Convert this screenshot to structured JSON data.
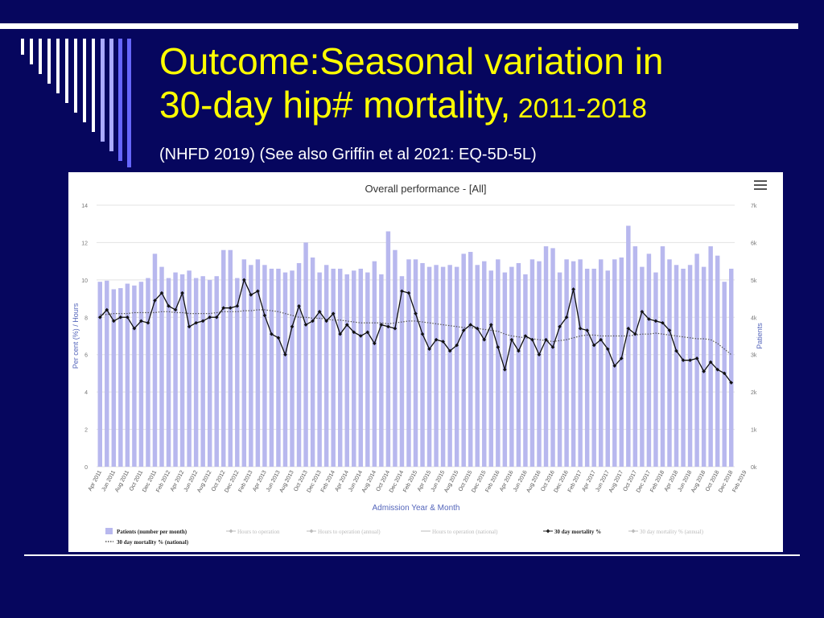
{
  "slide": {
    "title_line1": "Outcome:Seasonal variation in",
    "title_line2_main": "30-day hip# mortality,",
    "title_line2_years": " 2011-2018",
    "subtitle": "(NHFD 2019) (See also Griffin et al 2021: EQ-5D-5L)"
  },
  "colors": {
    "background": "#06065e",
    "title": "#ffff00",
    "bar": "#b8b8ee",
    "line": "#111111",
    "national_dotted": "#555555"
  },
  "chart_data": {
    "type": "bar+line",
    "title": "Overall performance - [All]",
    "xlabel": "Admission Year & Month",
    "ylabel_left": "Per cent (%) / Hours",
    "ylabel_right": "Patients",
    "ylim_left": [
      0,
      14
    ],
    "ylim_right": [
      0,
      7000
    ],
    "yticks_left": [
      "0",
      "2",
      "4",
      "6",
      "8",
      "10",
      "12",
      "14"
    ],
    "yticks_right": [
      "0k",
      "1k",
      "2k",
      "3k",
      "4k",
      "5k",
      "6k",
      "7k"
    ],
    "x_tick_labels": [
      "Apr 2011",
      "Jun 2011",
      "Aug 2011",
      "Oct 2011",
      "Dec 2011",
      "Feb 2012",
      "Apr 2012",
      "Jun 2012",
      "Aug 2012",
      "Oct 2012",
      "Dec 2012",
      "Feb 2013",
      "Apr 2013",
      "Jun 2013",
      "Aug 2013",
      "Oct 2013",
      "Dec 2013",
      "Feb 2014",
      "Apr 2014",
      "Jun 2014",
      "Aug 2014",
      "Oct 2014",
      "Dec 2014",
      "Feb 2015",
      "Apr 2015",
      "Jun 2015",
      "Aug 2015",
      "Oct 2015",
      "Dec 2015",
      "Feb 2016",
      "Apr 2016",
      "Jun 2016",
      "Aug 2016",
      "Oct 2016",
      "Dec 2016",
      "Feb 2017",
      "Apr 2017",
      "Jun 2017",
      "Aug 2017",
      "Oct 2017",
      "Dec 2017",
      "Feb 2018",
      "Apr 2018",
      "Jun 2018",
      "Aug 2018",
      "Oct 2018",
      "Dec 2018",
      "Feb 2019"
    ],
    "start_month": "Apr 2011",
    "series": [
      {
        "name": "Patients (number per month)",
        "axis": "right",
        "kind": "bar",
        "values": [
          4950,
          4980,
          4750,
          4780,
          4900,
          4850,
          4950,
          5050,
          5700,
          5350,
          5050,
          5200,
          5150,
          5250,
          5050,
          5100,
          5000,
          5100,
          5800,
          5800,
          5050,
          5550,
          5400,
          5550,
          5400,
          5300,
          5300,
          5200,
          5250,
          5450,
          6000,
          5600,
          5200,
          5400,
          5300,
          5300,
          5150,
          5250,
          5300,
          5200,
          5500,
          5150,
          6300,
          5800,
          5100,
          5550,
          5550,
          5450,
          5350,
          5400,
          5350,
          5400,
          5350,
          5700,
          5750,
          5400,
          5500,
          5250,
          5550,
          5200,
          5350,
          5450,
          5150,
          5550,
          5500,
          5900,
          5850,
          5200,
          5550,
          5500,
          5550,
          5300,
          5300,
          5550,
          5250,
          5550,
          5600,
          6450,
          5900,
          5350,
          5700,
          5200,
          5900,
          5550,
          5400,
          5300,
          5400,
          5700,
          5350,
          5900,
          5650,
          4950,
          5300
        ]
      },
      {
        "name": "30 day mortality %",
        "axis": "left",
        "kind": "line",
        "values": [
          8.0,
          8.4,
          7.8,
          8.0,
          8.0,
          7.4,
          7.8,
          7.7,
          8.9,
          9.3,
          8.6,
          8.4,
          9.3,
          7.5,
          7.7,
          7.8,
          8.0,
          8.0,
          8.5,
          8.5,
          8.6,
          10.0,
          9.2,
          9.4,
          8.1,
          7.1,
          6.9,
          6.0,
          7.5,
          8.6,
          7.6,
          7.8,
          8.3,
          7.8,
          8.2,
          7.1,
          7.6,
          7.2,
          7.0,
          7.2,
          6.6,
          7.6,
          7.5,
          7.4,
          9.4,
          9.3,
          8.2,
          7.1,
          6.3,
          6.8,
          6.7,
          6.2,
          6.5,
          7.3,
          7.6,
          7.4,
          6.8,
          7.6,
          6.4,
          5.2,
          6.8,
          6.2,
          7.0,
          6.8,
          6.0,
          6.8,
          6.4,
          7.5,
          8.0,
          9.5,
          7.4,
          7.3,
          6.5,
          6.8,
          6.3,
          5.4,
          5.8,
          7.4,
          7.1,
          8.3,
          7.9,
          7.8,
          7.7,
          7.3,
          6.2,
          5.7,
          5.7,
          5.8,
          5.1,
          5.6,
          5.2,
          5.0,
          4.5
        ]
      },
      {
        "name": "30 day mortality % (national)",
        "axis": "left",
        "kind": "dotted",
        "values": [
          8.15,
          8.15,
          8.2,
          8.2,
          8.2,
          8.25,
          8.25,
          8.25,
          8.25,
          8.3,
          8.3,
          8.25,
          8.25,
          8.2,
          8.2,
          8.2,
          8.2,
          8.25,
          8.3,
          8.3,
          8.3,
          8.35,
          8.35,
          8.4,
          8.4,
          8.35,
          8.3,
          8.2,
          8.1,
          8.0,
          8.0,
          7.95,
          7.95,
          7.9,
          7.85,
          7.85,
          7.8,
          7.75,
          7.7,
          7.7,
          7.7,
          7.7,
          7.65,
          7.7,
          7.75,
          7.8,
          7.8,
          7.75,
          7.7,
          7.65,
          7.6,
          7.55,
          7.5,
          7.45,
          7.45,
          7.4,
          7.35,
          7.3,
          7.25,
          7.1,
          7.0,
          6.95,
          6.9,
          6.85,
          6.8,
          6.75,
          6.7,
          6.75,
          6.8,
          6.9,
          7.0,
          7.05,
          7.05,
          7.0,
          7.0,
          7.0,
          7.0,
          7.0,
          7.05,
          7.1,
          7.1,
          7.15,
          7.1,
          7.05,
          7.0,
          6.95,
          6.9,
          6.85,
          6.85,
          6.8,
          6.6,
          6.3,
          6.0
        ]
      }
    ],
    "legend": {
      "placement": "bottom",
      "items": [
        {
          "label": "Patients (number per month)",
          "style": "bar",
          "active": true
        },
        {
          "label": "Hours to operation",
          "style": "line-diamond",
          "active": false
        },
        {
          "label": "Hours to operation (annual)",
          "style": "line-diamond",
          "active": false
        },
        {
          "label": "Hours to operation (national)",
          "style": "line",
          "active": false
        },
        {
          "label": "30 day mortality %",
          "style": "line-diamond",
          "active": true
        },
        {
          "label": "30 day mortality % (annual)",
          "style": "line-diamond",
          "active": false
        },
        {
          "label": "30 day mortality % (national)",
          "style": "dotted",
          "active": true
        }
      ]
    },
    "grid": "horizontal"
  }
}
